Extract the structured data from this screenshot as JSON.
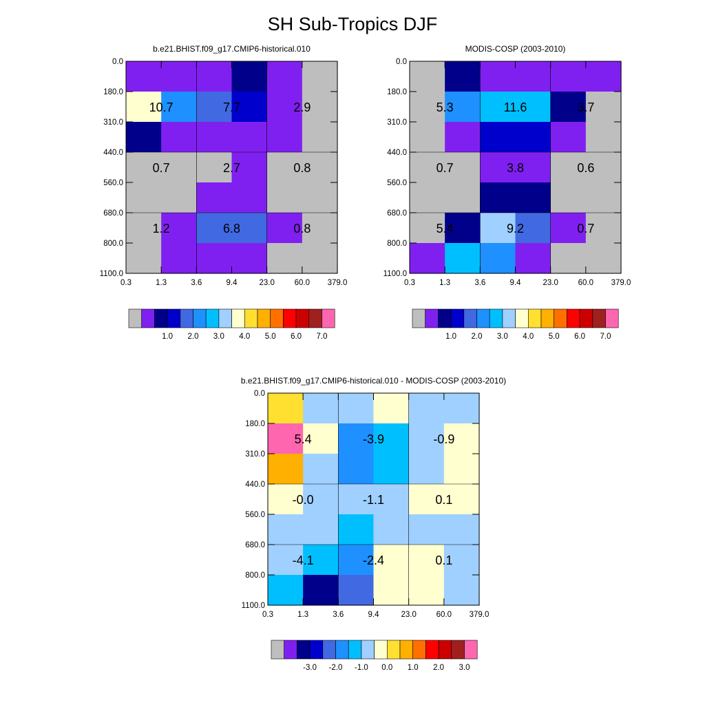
{
  "figure": {
    "title": "SH Sub-Tropics DJF"
  },
  "x_tick_labels": [
    "0.3",
    "1.3",
    "3.6",
    "9.4",
    "23.0",
    "60.0",
    "379.0"
  ],
  "y_tick_labels": [
    "0.0",
    "180.0",
    "310.0",
    "440.0",
    "560.0",
    "680.0",
    "800.0",
    "1100.0"
  ],
  "colors": {
    "abs_palette": [
      "#bebebe",
      "#8020f0",
      "#00008b",
      "#0000cd",
      "#4169e1",
      "#1e90ff",
      "#00bfff",
      "#a0d0ff",
      "#ffffd0",
      "#ffe030",
      "#ffb000",
      "#ff7000",
      "#ff0000",
      "#cc0000",
      "#a02020",
      "#ff66b0"
    ],
    "diff_palette": [
      "#bebebe",
      "#8020f0",
      "#00008b",
      "#0000cd",
      "#4169e1",
      "#1e90ff",
      "#00bfff",
      "#a0d0ff",
      "#ffffd0",
      "#ffe030",
      "#ffb000",
      "#ff7000",
      "#ff0000",
      "#cc0000",
      "#a02020",
      "#ff66b0"
    ]
  },
  "chart_data": [
    {
      "type": "heatmap",
      "title": "b.e21.BHIST.f09_g17.CMIP6-historical.010",
      "x_bins": [
        "0.3",
        "1.3",
        "3.6",
        "9.4",
        "23.0",
        "60.0",
        "379.0"
      ],
      "y_bins": [
        "0.0",
        "180.0",
        "310.0",
        "440.0",
        "560.0",
        "680.0",
        "800.0",
        "1100.0"
      ],
      "cell_color_index": [
        [
          1,
          1,
          1,
          2,
          1,
          0
        ],
        [
          8,
          5,
          4,
          3,
          1,
          0
        ],
        [
          2,
          1,
          1,
          1,
          1,
          0
        ],
        [
          0,
          0,
          0,
          1,
          0,
          0
        ],
        [
          0,
          0,
          1,
          1,
          0,
          0
        ],
        [
          0,
          1,
          4,
          4,
          1,
          0
        ],
        [
          0,
          1,
          1,
          1,
          0,
          0
        ]
      ],
      "block_values": [
        [
          "10.7",
          "7.7",
          "2.9"
        ],
        [
          "0.7",
          "2.7",
          "0.8"
        ],
        [
          "1.2",
          "6.8",
          "0.8"
        ]
      ],
      "colorbar": {
        "labels": [
          "1.0",
          "2.0",
          "3.0",
          "4.0",
          "5.0",
          "6.0",
          "7.0"
        ]
      }
    },
    {
      "type": "heatmap",
      "title": "MODIS-COSP (2003-2010)",
      "x_bins": [
        "0.3",
        "1.3",
        "3.6",
        "9.4",
        "23.0",
        "60.0",
        "379.0"
      ],
      "y_bins": [
        "0.0",
        "180.0",
        "310.0",
        "440.0",
        "560.0",
        "680.0",
        "800.0",
        "1100.0"
      ],
      "cell_color_index": [
        [
          0,
          2,
          1,
          1,
          1,
          1
        ],
        [
          0,
          5,
          6,
          6,
          2,
          0
        ],
        [
          0,
          1,
          3,
          3,
          1,
          0
        ],
        [
          0,
          0,
          1,
          1,
          0,
          0
        ],
        [
          0,
          0,
          2,
          2,
          0,
          0
        ],
        [
          0,
          2,
          7,
          4,
          1,
          0
        ],
        [
          1,
          6,
          5,
          1,
          0,
          0
        ]
      ],
      "block_values": [
        [
          "5.3",
          "11.6",
          "3.7"
        ],
        [
          "0.7",
          "3.8",
          "0.6"
        ],
        [
          "5.4",
          "9.2",
          "0.7"
        ]
      ],
      "colorbar": {
        "labels": [
          "1.0",
          "2.0",
          "3.0",
          "4.0",
          "5.0",
          "6.0",
          "7.0"
        ]
      }
    },
    {
      "type": "heatmap",
      "title": "b.e21.BHIST.f09_g17.CMIP6-historical.010 - MODIS-COSP (2003-2010)",
      "x_bins": [
        "0.3",
        "1.3",
        "3.6",
        "9.4",
        "23.0",
        "60.0",
        "379.0"
      ],
      "y_bins": [
        "0.0",
        "180.0",
        "310.0",
        "440.0",
        "560.0",
        "680.0",
        "800.0",
        "1100.0"
      ],
      "cell_color_index": [
        [
          9,
          7,
          7,
          8,
          7,
          7
        ],
        [
          15,
          8,
          5,
          6,
          7,
          8
        ],
        [
          10,
          7,
          5,
          6,
          7,
          8
        ],
        [
          8,
          7,
          7,
          7,
          8,
          8
        ],
        [
          7,
          7,
          6,
          7,
          7,
          7
        ],
        [
          7,
          6,
          5,
          8,
          8,
          7
        ],
        [
          6,
          2,
          4,
          8,
          8,
          7
        ]
      ],
      "block_values": [
        [
          "5.4",
          "-3.9",
          "-0.9"
        ],
        [
          "-0.0",
          "-1.1",
          "0.1"
        ],
        [
          "-4.1",
          "-2.4",
          "0.1"
        ]
      ],
      "colorbar": {
        "labels": [
          "-3.0",
          "-2.0",
          "-1.0",
          "0.0",
          "1.0",
          "2.0",
          "3.0"
        ]
      }
    }
  ]
}
